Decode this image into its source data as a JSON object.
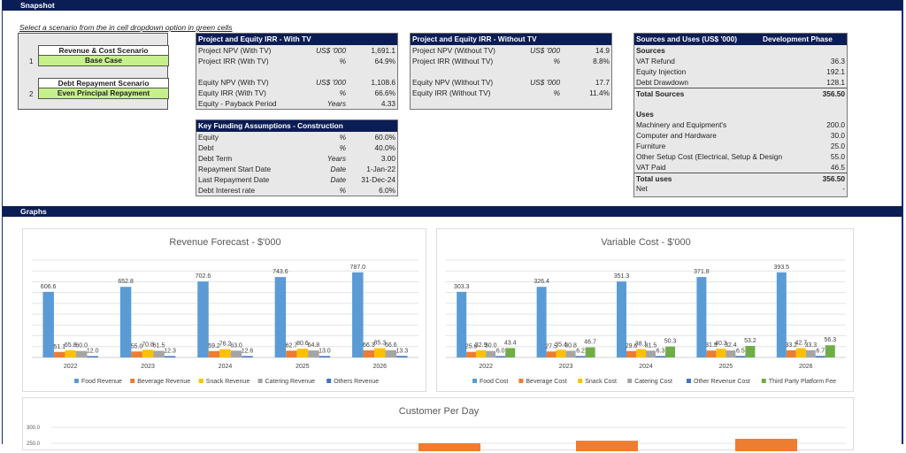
{
  "sections": {
    "snapshot": "Snapshot",
    "graphs": "Graphs"
  },
  "instruction": "Select a scenario from the in cell dropdown option in green cells",
  "scenarios": [
    {
      "num": "1",
      "title": "Revenue & Cost Scenario",
      "value": "Base Case"
    },
    {
      "num": "2",
      "title": "Debt Repayment Scenario",
      "value": "Even Principal Repayment"
    }
  ],
  "with_tv": {
    "title": "Project and Equity IRR - With TV",
    "rows": [
      {
        "label": "Project NPV (With TV)",
        "unit": "US$ '000",
        "value": "1,691.1"
      },
      {
        "label": "Project IRR  (With TV)",
        "unit": "%",
        "value": "64.9%"
      },
      {
        "label": "",
        "unit": "",
        "value": ""
      },
      {
        "label": "Equity NPV (With TV)",
        "unit": "US$ '000",
        "value": "1,108.6"
      },
      {
        "label": "Equity IRR  (With TV)",
        "unit": "%",
        "value": "66.6%"
      },
      {
        "label": "Equity - Payback Period",
        "unit": "Years",
        "value": "4.33"
      }
    ]
  },
  "without_tv": {
    "title": "Project and Equity IRR - Without TV",
    "rows": [
      {
        "label": "Project NPV (Without TV)",
        "unit": "US$ '000",
        "value": "14.9"
      },
      {
        "label": "Project IRR (Without TV)",
        "unit": "%",
        "value": "8.8%"
      },
      {
        "label": "",
        "unit": "",
        "value": ""
      },
      {
        "label": "Equity NPV (Without TV)",
        "unit": "US$ '000",
        "value": "17.7"
      },
      {
        "label": "Equity IRR (Without TV)",
        "unit": "%",
        "value": "11.4%"
      },
      {
        "label": "",
        "unit": "",
        "value": ""
      }
    ]
  },
  "funding": {
    "title": "Key Funding Assumptions - Construction",
    "rows": [
      {
        "label": "Equity",
        "unit": "%",
        "value": "60.0%"
      },
      {
        "label": "Debt",
        "unit": "%",
        "value": "40.0%"
      },
      {
        "label": "Debt Term",
        "unit": "Years",
        "value": "3.00"
      },
      {
        "label": "Repayment Start Date",
        "unit": "Date",
        "value": "1-Jan-22"
      },
      {
        "label": "Last Repayment Date",
        "unit": "Date",
        "value": "31-Dec-24"
      },
      {
        "label": "Debt Interest rate",
        "unit": "%",
        "value": "6.0%"
      }
    ]
  },
  "sources_uses": {
    "title": "Sources and Uses (US$ '000)",
    "phase": "Development Phase",
    "rows": [
      {
        "label": "Sources",
        "value": "",
        "style": "b"
      },
      {
        "label": "VAT Refund",
        "value": "36.3"
      },
      {
        "label": "Equity Injection",
        "value": "192.1"
      },
      {
        "label": "Debt Drawdown",
        "value": "128.1"
      },
      {
        "label": "Total Sources",
        "value": "356.50",
        "style": "b bt"
      },
      {
        "label": "",
        "value": ""
      },
      {
        "label": "Uses",
        "value": "",
        "style": "b"
      },
      {
        "label": "Machinery and Equipment's",
        "value": "200.0"
      },
      {
        "label": "Computer and Hardware",
        "value": "30.0"
      },
      {
        "label": "Furniture",
        "value": "25.0"
      },
      {
        "label": "Other Setup Cost (Electrical, Setup & Design",
        "value": "55.0"
      },
      {
        "label": "VAT Paid",
        "value": "46.5"
      },
      {
        "label": "Total uses",
        "value": "356.50",
        "style": "b bt"
      },
      {
        "label": "Net",
        "value": "-"
      }
    ]
  },
  "chart_data": [
    {
      "type": "bar",
      "title": "Revenue Forecast - $'000",
      "categories": [
        "2022",
        "2023",
        "2024",
        "2025",
        "2026"
      ],
      "ylim": [
        0,
        900
      ],
      "grid": true,
      "legend": "bottom",
      "series": [
        {
          "name": "Food Revenue",
          "color": "#5b9bd5",
          "values": [
            606.6,
            652.8,
            702.6,
            743.6,
            787.0
          ]
        },
        {
          "name": "Beverage Revenue",
          "color": "#ed7d31",
          "values": [
            51.1,
            55.0,
            59.2,
            62.7,
            66.3
          ]
        },
        {
          "name": "Snack Revenue",
          "color": "#ffc000",
          "values": [
            65.8,
            70.8,
            76.2,
            80.6,
            85.3
          ]
        },
        {
          "name": "Catering Revenue",
          "color": "#a5a5a5",
          "values": [
            60.0,
            61.5,
            63.0,
            64.8,
            66.6
          ]
        },
        {
          "name": "Others Revenue",
          "color": "#4472c4",
          "values": [
            12.0,
            12.3,
            12.6,
            13.0,
            13.3
          ]
        }
      ]
    },
    {
      "type": "bar",
      "title": "Variable Cost - $'000",
      "categories": [
        "2022",
        "2023",
        "2024",
        "2025",
        "2026"
      ],
      "ylim": [
        0,
        450
      ],
      "grid": true,
      "legend": "bottom",
      "series": [
        {
          "name": "Food Cost",
          "color": "#5b9bd5",
          "values": [
            303.3,
            326.4,
            351.3,
            371.8,
            393.5
          ]
        },
        {
          "name": "Beverage Cost",
          "color": "#ed7d31",
          "values": [
            25.6,
            27.5,
            29.6,
            31.9,
            33.2
          ]
        },
        {
          "name": "Snack Cost",
          "color": "#ffc000",
          "values": [
            32.9,
            35.4,
            38.1,
            40.3,
            42.7
          ]
        },
        {
          "name": "Catering Cost",
          "color": "#a5a5a5",
          "values": [
            30.0,
            30.8,
            31.5,
            32.4,
            33.3
          ]
        },
        {
          "name": "Other Revenue Cost",
          "color": "#4472c4",
          "values": [
            6.0,
            6.2,
            6.3,
            6.5,
            6.7
          ]
        },
        {
          "name": "Third Party Platform Fee",
          "color": "#70ad47",
          "values": [
            43.4,
            46.7,
            50.3,
            53.2,
            56.3
          ]
        }
      ]
    },
    {
      "type": "bar",
      "title": "Customer Per Day",
      "yticks": [
        "300.0",
        "250.0"
      ],
      "grid": true,
      "series": [
        {
          "color": "#ed7d31",
          "values": [
            250,
            258,
            264
          ]
        }
      ]
    }
  ],
  "colors": {
    "header": "#0b1d55",
    "input_green": "#c6f08c",
    "panel": "#e8e8e8"
  }
}
